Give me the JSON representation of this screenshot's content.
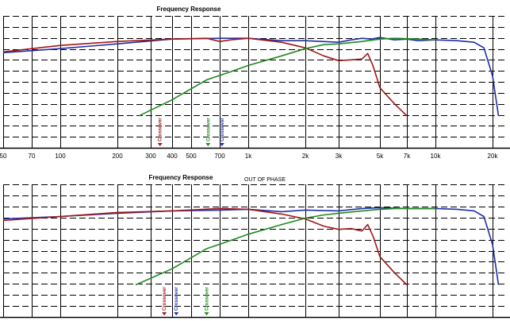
{
  "colors": {
    "background": "#ffffff",
    "grid": "#000000",
    "series1": "#1f2fa8",
    "series2": "#a01818",
    "series3": "#1e8a1e"
  },
  "chart_data": [
    {
      "type": "line",
      "title": "Frequency Response",
      "subtitle": "",
      "x_scale": "log",
      "xlim": [
        50,
        23000
      ],
      "grid": true,
      "x_ticks": [
        "50",
        "70",
        "100",
        "200",
        "300",
        "400",
        "500",
        "700",
        "1k",
        "2k",
        "3k",
        "5k",
        "7k",
        "10k",
        "20k"
      ],
      "x_tick_values": [
        50,
        70,
        100,
        200,
        300,
        400,
        500,
        700,
        1000,
        2000,
        3000,
        5000,
        7000,
        10000,
        20000
      ],
      "markers": [
        {
          "label": "Crossover",
          "x": 340,
          "color": "#a01818"
        },
        {
          "label": "Crossover",
          "x": 610,
          "color": "#1e8a1e"
        },
        {
          "label": "Crossover",
          "x": 720,
          "color": "#1f2fa8"
        }
      ],
      "series": [
        {
          "color": "#1f2fa8",
          "x": [
            50,
            100,
            200,
            400,
            700,
            1000,
            1500,
            2000,
            3000,
            3500,
            4000,
            4500,
            5000,
            6000,
            7000,
            8000,
            10000,
            13000,
            16000,
            18000,
            20000,
            21500
          ],
          "y": [
            11.9,
            12.4,
            13.0,
            13.6,
            13.7,
            13.7,
            13.4,
            13.4,
            13.2,
            13.5,
            13.7,
            13.6,
            13.8,
            13.5,
            13.6,
            13.4,
            13.5,
            13.4,
            13.2,
            12.5,
            9.0,
            4.0
          ]
        },
        {
          "color": "#a01818",
          "x": [
            50,
            100,
            200,
            400,
            600,
            700,
            800,
            1000,
            1500,
            2000,
            2500,
            3000,
            3500,
            4000,
            4300,
            4600,
            5000,
            6000,
            7000
          ],
          "y": [
            12.0,
            12.8,
            13.3,
            13.6,
            13.7,
            13.3,
            13.5,
            13.7,
            13.2,
            12.5,
            11.5,
            10.9,
            11.0,
            11.1,
            11.8,
            10.2,
            7.5,
            5.5,
            4.0
          ]
        },
        {
          "color": "#1e8a1e",
          "x": [
            260,
            400,
            600,
            800,
            1000,
            1500,
            2000,
            2500,
            3000,
            4000,
            5000,
            6000,
            8000,
            10000
          ],
          "y": [
            4.0,
            6.0,
            8.5,
            9.5,
            10.3,
            11.5,
            12.4,
            12.9,
            13.0,
            13.3,
            13.6,
            13.7,
            13.6,
            13.5
          ]
        }
      ]
    },
    {
      "type": "line",
      "title": "Frequency Response",
      "subtitle": "OUT OF PHASE",
      "x_scale": "log",
      "xlim": [
        50,
        23000
      ],
      "grid": true,
      "markers": [
        {
          "label": "Crossover",
          "x": 360,
          "color": "#a01818"
        },
        {
          "label": "Crossover",
          "x": 420,
          "color": "#1f2fa8"
        },
        {
          "label": "Crossover",
          "x": 600,
          "color": "#1e8a1e"
        }
      ],
      "series": [
        {
          "color": "#1f2fa8",
          "x": [
            50,
            100,
            200,
            400,
            700,
            1000,
            1500,
            2000,
            3000,
            4000,
            5000,
            7000,
            10000,
            13000,
            16000,
            18000,
            20000,
            21500
          ],
          "y": [
            12.2,
            12.5,
            12.9,
            13.2,
            13.3,
            13.4,
            13.1,
            13.3,
            13.2,
            13.5,
            13.6,
            13.5,
            13.5,
            13.4,
            13.2,
            12.5,
            9.0,
            4.0
          ]
        },
        {
          "color": "#a01818",
          "x": [
            50,
            100,
            200,
            400,
            700,
            1000,
            1500,
            2000,
            2500,
            3000,
            3500,
            4000,
            4300,
            4600,
            5000,
            6000,
            7000
          ],
          "y": [
            12.0,
            12.5,
            13.0,
            13.2,
            13.5,
            13.4,
            12.8,
            12.2,
            11.3,
            10.9,
            11.0,
            10.7,
            11.5,
            10.0,
            7.5,
            5.5,
            4.0
          ]
        },
        {
          "color": "#1e8a1e",
          "x": [
            250,
            400,
            600,
            800,
            1000,
            1500,
            2000,
            2500,
            3000,
            4000,
            5000,
            6000,
            8000,
            10000
          ],
          "y": [
            4.0,
            6.0,
            8.5,
            9.5,
            10.3,
            11.5,
            12.3,
            12.7,
            12.9,
            13.2,
            13.4,
            13.5,
            13.5,
            13.5
          ]
        }
      ]
    }
  ]
}
